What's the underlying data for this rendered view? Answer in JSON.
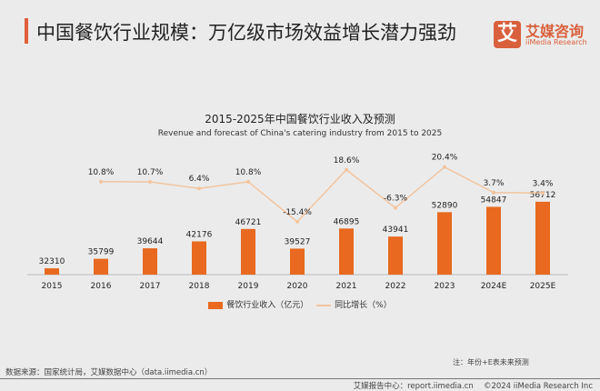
{
  "header": {
    "title": "中国餐饮行业规模：万亿级市场效益增长潜力强劲",
    "logo_mark": "艾",
    "logo_cn": "艾媒咨询",
    "logo_en": "iiMedia Research"
  },
  "chart_data": {
    "type": "bar+line",
    "title": "2015-2025年中国餐饮行业收入及预测",
    "subtitle": "Revenue and forecast of China's catering industry from 2015 to 2025",
    "categories": [
      "2015",
      "2016",
      "2017",
      "2018",
      "2019",
      "2020",
      "2021",
      "2022",
      "2023",
      "2024E",
      "2025E"
    ],
    "series": [
      {
        "name": "餐饮行业收入（亿元）",
        "type": "bar",
        "color": "#e8691f",
        "values": [
          32310,
          35799,
          39644,
          42176,
          46721,
          39527,
          46895,
          43941,
          52890,
          54847,
          56712
        ]
      },
      {
        "name": "同比增长（%）",
        "type": "line",
        "color": "#f2c49e",
        "values": [
          null,
          10.8,
          10.7,
          6.4,
          10.8,
          -15.4,
          18.6,
          -6.3,
          20.4,
          3.7,
          3.4
        ],
        "labels": [
          "",
          "10.8%",
          "10.7%",
          "6.4%",
          "10.8%",
          "-15.4%",
          "18.6%",
          "-6.3%",
          "20.4%",
          "3.7%",
          "3.4%"
        ]
      }
    ],
    "grid": false,
    "legend": "bottom"
  },
  "note": "注：年份+E表未来预测",
  "source": "数据来源：国家统计局，艾媒数据中心（data.iimedia.cn）",
  "footer": "艾媒报告中心：report.iimedia.cn　 ©2024  iiMedia Research  Inc"
}
